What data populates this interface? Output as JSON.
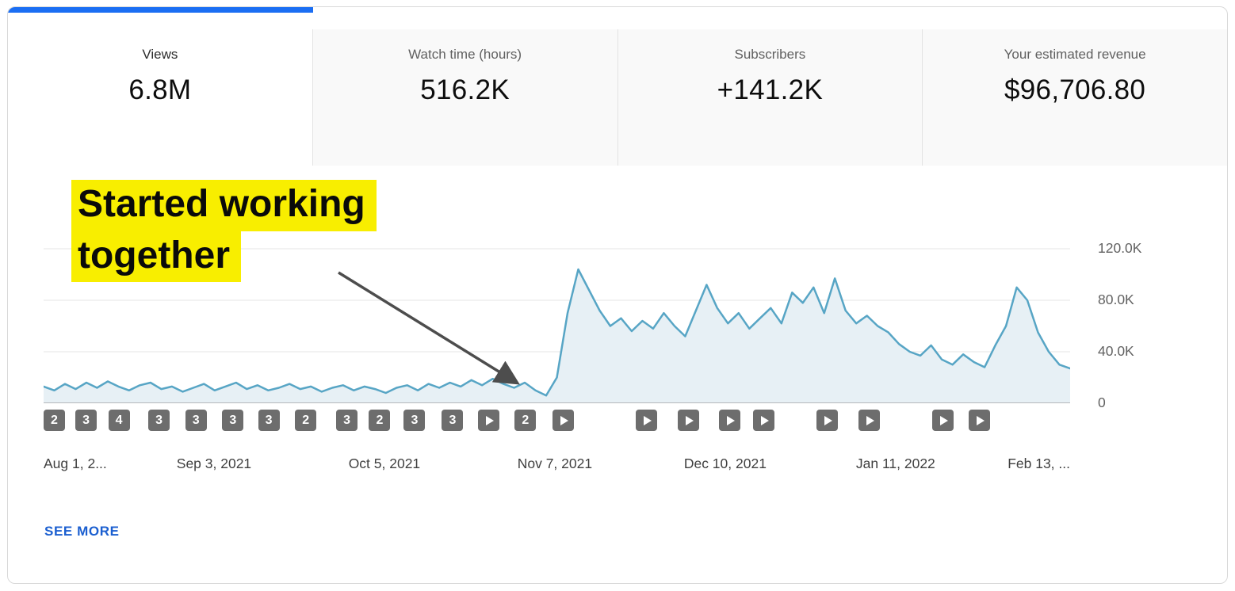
{
  "tabs": [
    {
      "label": "Views",
      "value": "6.8M",
      "active": true
    },
    {
      "label": "Watch time (hours)",
      "value": "516.2K",
      "active": false
    },
    {
      "label": "Subscribers",
      "value": "+141.2K",
      "active": false
    },
    {
      "label": "Your estimated revenue",
      "value": "$96,706.80",
      "active": false
    }
  ],
  "annotation": {
    "line1": "Started working",
    "line2": "together"
  },
  "footer": {
    "see_more_label": "SEE MORE"
  },
  "colors": {
    "accent_blue": "#1b6ef3",
    "line_blue": "#57a5c5",
    "area_fill": "#e7f0f5",
    "link_blue": "#1b5fd0",
    "highlight_yellow": "#f8ee00",
    "marker_gray": "#6d6d6d",
    "gridline": "#e6e6e6",
    "baseline": "#a6a6a6"
  },
  "chart_data": {
    "type": "area",
    "title": "",
    "legend": "none",
    "grid": "horizontal",
    "series": [
      {
        "name": "Views",
        "unit": "thousands",
        "values": [
          13,
          10,
          15,
          11,
          16,
          12,
          17,
          13,
          10,
          14,
          16,
          11,
          13,
          9,
          12,
          15,
          10,
          13,
          16,
          11,
          14,
          10,
          12,
          15,
          11,
          13,
          9,
          12,
          14,
          10,
          13,
          11,
          8,
          12,
          14,
          10,
          15,
          12,
          16,
          13,
          18,
          14,
          19,
          15,
          12,
          16,
          10,
          6,
          20,
          70,
          104,
          88,
          72,
          60,
          66,
          56,
          64,
          58,
          70,
          60,
          52,
          72,
          92,
          74,
          62,
          70,
          58,
          66,
          74,
          62,
          86,
          78,
          90,
          70,
          97,
          72,
          62,
          68,
          60,
          55,
          46,
          40,
          37,
          45,
          34,
          30,
          38,
          32,
          28,
          45,
          60,
          90,
          80,
          55,
          40,
          30,
          27
        ]
      }
    ],
    "y_axis": {
      "max_thousands": 120,
      "ticks": [
        {
          "label": "120.0K",
          "v": 120
        },
        {
          "label": "80.0K",
          "v": 80
        },
        {
          "label": "40.0K",
          "v": 40
        },
        {
          "label": "0",
          "v": 0
        }
      ]
    },
    "x_axis": {
      "ticks": [
        {
          "label": "Aug 1, 2...",
          "pos": 0.0,
          "align": "start"
        },
        {
          "label": "Sep 3, 2021",
          "pos": 0.166,
          "align": "middle"
        },
        {
          "label": "Oct 5, 2021",
          "pos": 0.332,
          "align": "middle"
        },
        {
          "label": "Nov 7, 2021",
          "pos": 0.498,
          "align": "middle"
        },
        {
          "label": "Dec 10, 2021",
          "pos": 0.664,
          "align": "middle"
        },
        {
          "label": "Jan 11, 2022",
          "pos": 0.83,
          "align": "middle"
        },
        {
          "label": "Feb 13, ...",
          "pos": 1.0,
          "align": "end"
        }
      ]
    }
  },
  "video_markers": [
    {
      "pos": 0.01,
      "type": "count",
      "label": "2"
    },
    {
      "pos": 0.041,
      "type": "count",
      "label": "3"
    },
    {
      "pos": 0.073,
      "type": "count",
      "label": "4"
    },
    {
      "pos": 0.112,
      "type": "count",
      "label": "3"
    },
    {
      "pos": 0.148,
      "type": "count",
      "label": "3"
    },
    {
      "pos": 0.184,
      "type": "count",
      "label": "3"
    },
    {
      "pos": 0.219,
      "type": "count",
      "label": "3"
    },
    {
      "pos": 0.255,
      "type": "count",
      "label": "2"
    },
    {
      "pos": 0.295,
      "type": "count",
      "label": "3"
    },
    {
      "pos": 0.327,
      "type": "count",
      "label": "2"
    },
    {
      "pos": 0.361,
      "type": "count",
      "label": "3"
    },
    {
      "pos": 0.398,
      "type": "count",
      "label": "3"
    },
    {
      "pos": 0.433,
      "type": "play",
      "label": "play"
    },
    {
      "pos": 0.469,
      "type": "count",
      "label": "2"
    },
    {
      "pos": 0.506,
      "type": "play",
      "label": "play"
    },
    {
      "pos": 0.587,
      "type": "play",
      "label": "play"
    },
    {
      "pos": 0.628,
      "type": "play",
      "label": "play"
    },
    {
      "pos": 0.668,
      "type": "play",
      "label": "play"
    },
    {
      "pos": 0.701,
      "type": "play",
      "label": "play"
    },
    {
      "pos": 0.763,
      "type": "play",
      "label": "play"
    },
    {
      "pos": 0.804,
      "type": "play",
      "label": "play"
    },
    {
      "pos": 0.876,
      "type": "play",
      "label": "play"
    },
    {
      "pos": 0.911,
      "type": "play",
      "label": "play"
    }
  ]
}
